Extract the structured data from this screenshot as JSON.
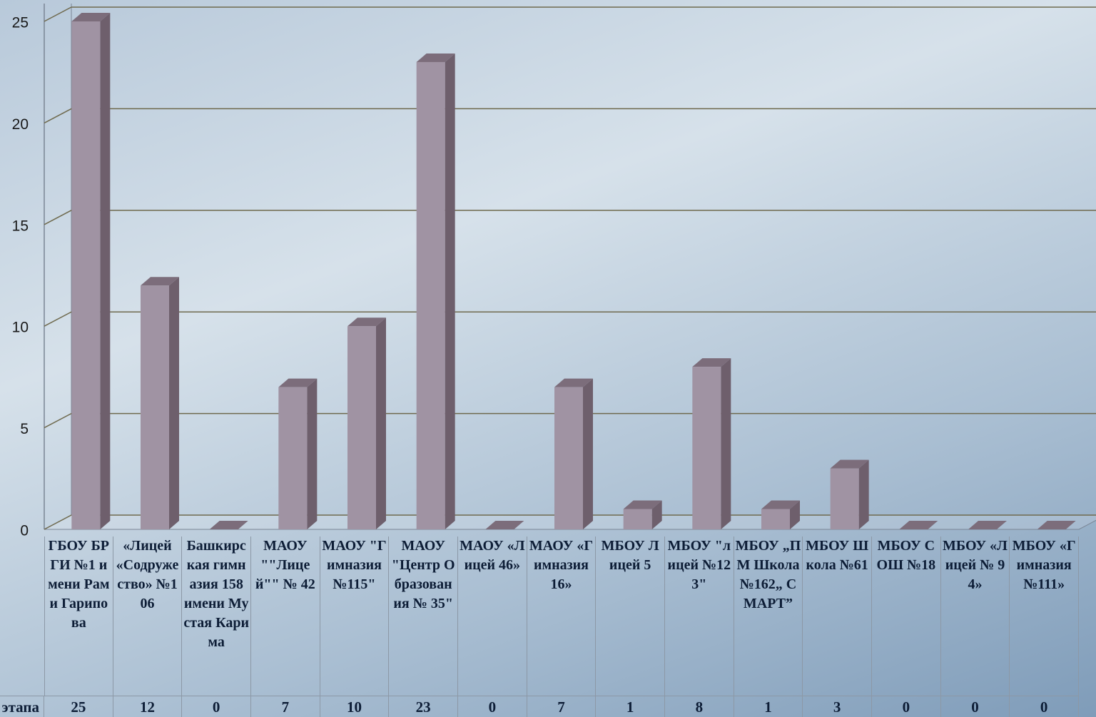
{
  "chart_data": {
    "type": "bar",
    "categories": [
      "ГБОУ БРГИ №1 имени Рами Гарипова",
      "«Лицей «Содружество» №106",
      "Башкирская гимназия 158 имени Мустая Карима",
      "МАОУ \"\"Лицей\"\" № 42",
      "МАОУ \"Гимназия №115\"",
      "МАОУ \"Центр Образования № 35\"",
      "МАОУ «Лицей 46»",
      "МАОУ «Гимназия 16»",
      "МБОУ Лицей 5",
      "МБОУ \"лицей №123\"",
      "МБОУ „ПМ Школа №162„ СМАРТ”",
      "МБОУ Школа №61",
      "МБОУ СОШ №18",
      "МБОУ «Лицей № 94»",
      "МБОУ «Гимназия №111»"
    ],
    "series": [
      {
        "name": "этапа",
        "color": "#a093a3",
        "values": [
          25,
          12,
          0,
          7,
          10,
          23,
          0,
          7,
          1,
          8,
          1,
          3,
          0,
          0,
          0
        ]
      }
    ],
    "ylim": [
      0,
      25
    ],
    "yticks": [
      0,
      5,
      10,
      15,
      20,
      25
    ],
    "grid": true
  }
}
